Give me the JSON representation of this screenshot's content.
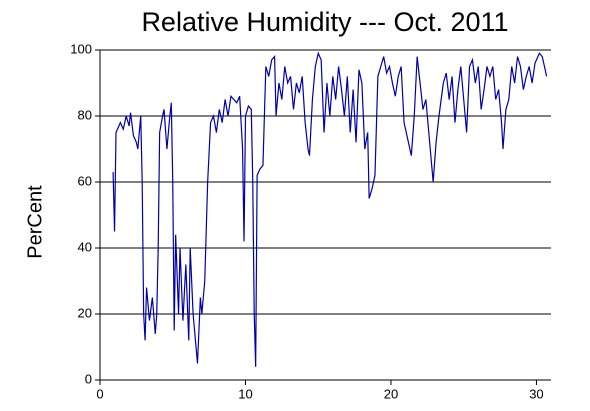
{
  "chart_data": {
    "type": "line",
    "title": "Relative Humidity --- Oct. 2011",
    "y_label": "PerCent",
    "color": "#0000a8",
    "x": [
      0.9,
      1.0,
      1.1,
      1.4,
      1.6,
      1.8,
      2.0,
      2.1,
      2.3,
      2.5,
      2.6,
      2.8,
      2.9,
      3.0,
      3.1,
      3.2,
      3.4,
      3.6,
      3.8,
      3.9,
      4.0,
      4.1,
      4.3,
      4.4,
      4.6,
      4.8,
      4.9,
      5.0,
      5.1,
      5.2,
      5.4,
      5.5,
      5.7,
      5.9,
      6.1,
      6.2,
      6.4,
      6.5,
      6.7,
      6.9,
      7.0,
      7.2,
      7.4,
      7.6,
      7.8,
      8.0,
      8.2,
      8.4,
      8.6,
      8.8,
      9.0,
      9.4,
      9.6,
      9.8,
      9.9,
      10.0,
      10.2,
      10.4,
      10.5,
      10.6,
      10.7,
      10.8,
      11.0,
      11.2,
      11.4,
      11.6,
      11.8,
      12.0,
      12.1,
      12.3,
      12.5,
      12.7,
      12.9,
      13.1,
      13.3,
      13.5,
      13.7,
      13.9,
      14.1,
      14.3,
      14.4,
      14.6,
      14.8,
      15.0,
      15.2,
      15.4,
      15.6,
      15.8,
      16.0,
      16.2,
      16.4,
      16.6,
      16.8,
      17.0,
      17.2,
      17.4,
      17.6,
      17.8,
      18.0,
      18.2,
      18.4,
      18.5,
      18.7,
      18.9,
      19.1,
      19.3,
      19.5,
      19.7,
      19.9,
      20.1,
      20.3,
      20.5,
      20.7,
      20.9,
      21.2,
      21.4,
      21.6,
      21.8,
      22.0,
      22.2,
      22.4,
      22.7,
      22.9,
      23.1,
      23.3,
      23.6,
      23.8,
      24.0,
      24.2,
      24.4,
      24.6,
      24.8,
      25.0,
      25.2,
      25.4,
      25.6,
      25.8,
      26.0,
      26.2,
      26.4,
      26.6,
      26.8,
      27.0,
      27.2,
      27.4,
      27.6,
      27.7,
      27.9,
      28.1,
      28.3,
      28.5,
      28.7,
      28.9,
      29.1,
      29.3,
      29.5,
      29.7,
      29.9,
      30.2,
      30.4,
      30.6,
      30.7
    ],
    "values": [
      63,
      45,
      75,
      78,
      76,
      80,
      77,
      81,
      74,
      72,
      70,
      80,
      60,
      20,
      12,
      28,
      18,
      25,
      14,
      20,
      40,
      75,
      80,
      82,
      70,
      80,
      84,
      60,
      15,
      44,
      20,
      40,
      18,
      35,
      12,
      40,
      20,
      15,
      5,
      25,
      20,
      30,
      60,
      78,
      80,
      75,
      82,
      78,
      85,
      80,
      86,
      84,
      86,
      70,
      42,
      80,
      83,
      82,
      60,
      20,
      4,
      62,
      64,
      65,
      95,
      92,
      97,
      98,
      80,
      90,
      85,
      95,
      90,
      92,
      82,
      90,
      87,
      92,
      78,
      70,
      68,
      85,
      95,
      99,
      97,
      75,
      90,
      80,
      92,
      85,
      95,
      88,
      80,
      92,
      75,
      88,
      72,
      94,
      90,
      70,
      75,
      55,
      58,
      62,
      92,
      95,
      98,
      93,
      95,
      90,
      86,
      92,
      95,
      78,
      72,
      68,
      80,
      98,
      90,
      82,
      85,
      70,
      60,
      72,
      80,
      90,
      93,
      85,
      92,
      78,
      88,
      95,
      85,
      75,
      95,
      97,
      90,
      95,
      82,
      88,
      95,
      92,
      95,
      85,
      88,
      78,
      70,
      82,
      85,
      95,
      90,
      98,
      95,
      88,
      92,
      95,
      90,
      96,
      99,
      98,
      94,
      92
    ],
    "xlim": [
      0,
      31
    ],
    "ylim": [
      0,
      100
    ],
    "xticks": [
      0,
      10,
      20,
      30
    ],
    "yticks": [
      0,
      20,
      40,
      60,
      80,
      100
    ],
    "grid": true
  }
}
